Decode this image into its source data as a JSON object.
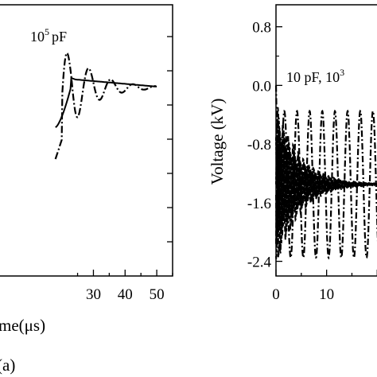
{
  "chart_data": [
    {
      "type": "line",
      "panel_label": "(a)",
      "xlabel_visible": "me(μs)",
      "ylabel": "",
      "xlim": [
        0,
        55
      ],
      "xticks": [
        30,
        40,
        50
      ],
      "annotation": {
        "base": "10",
        "exp": "5",
        "unit": "pF"
      },
      "grid": false,
      "series": [
        {
          "style": "dash-dot",
          "decay_tau": 8,
          "period": 7,
          "amp": 1.0,
          "x": [
            20,
            23,
            25,
            27.5,
            30,
            32,
            34.5,
            37,
            39,
            41.5,
            44,
            47,
            50
          ]
        },
        {
          "style": "solid"
        }
      ]
    },
    {
      "type": "line",
      "xlabel": "",
      "ylabel": "Voltage (kV)",
      "xlim": [
        0,
        22
      ],
      "ylim": [
        -2.6,
        1.1
      ],
      "xticks": [
        0,
        10
      ],
      "yticks": [
        0.8,
        0.0,
        -0.8,
        -1.6,
        -2.4
      ],
      "annotation": {
        "text": "10 pF, 10",
        "exp": "3"
      },
      "grid": false,
      "series": [
        {
          "style": "dash-dot",
          "center": -1.35,
          "amplitude": 1.0,
          "period": 2.5
        },
        {
          "style": "dense-decay",
          "center": -1.35
        }
      ]
    }
  ]
}
